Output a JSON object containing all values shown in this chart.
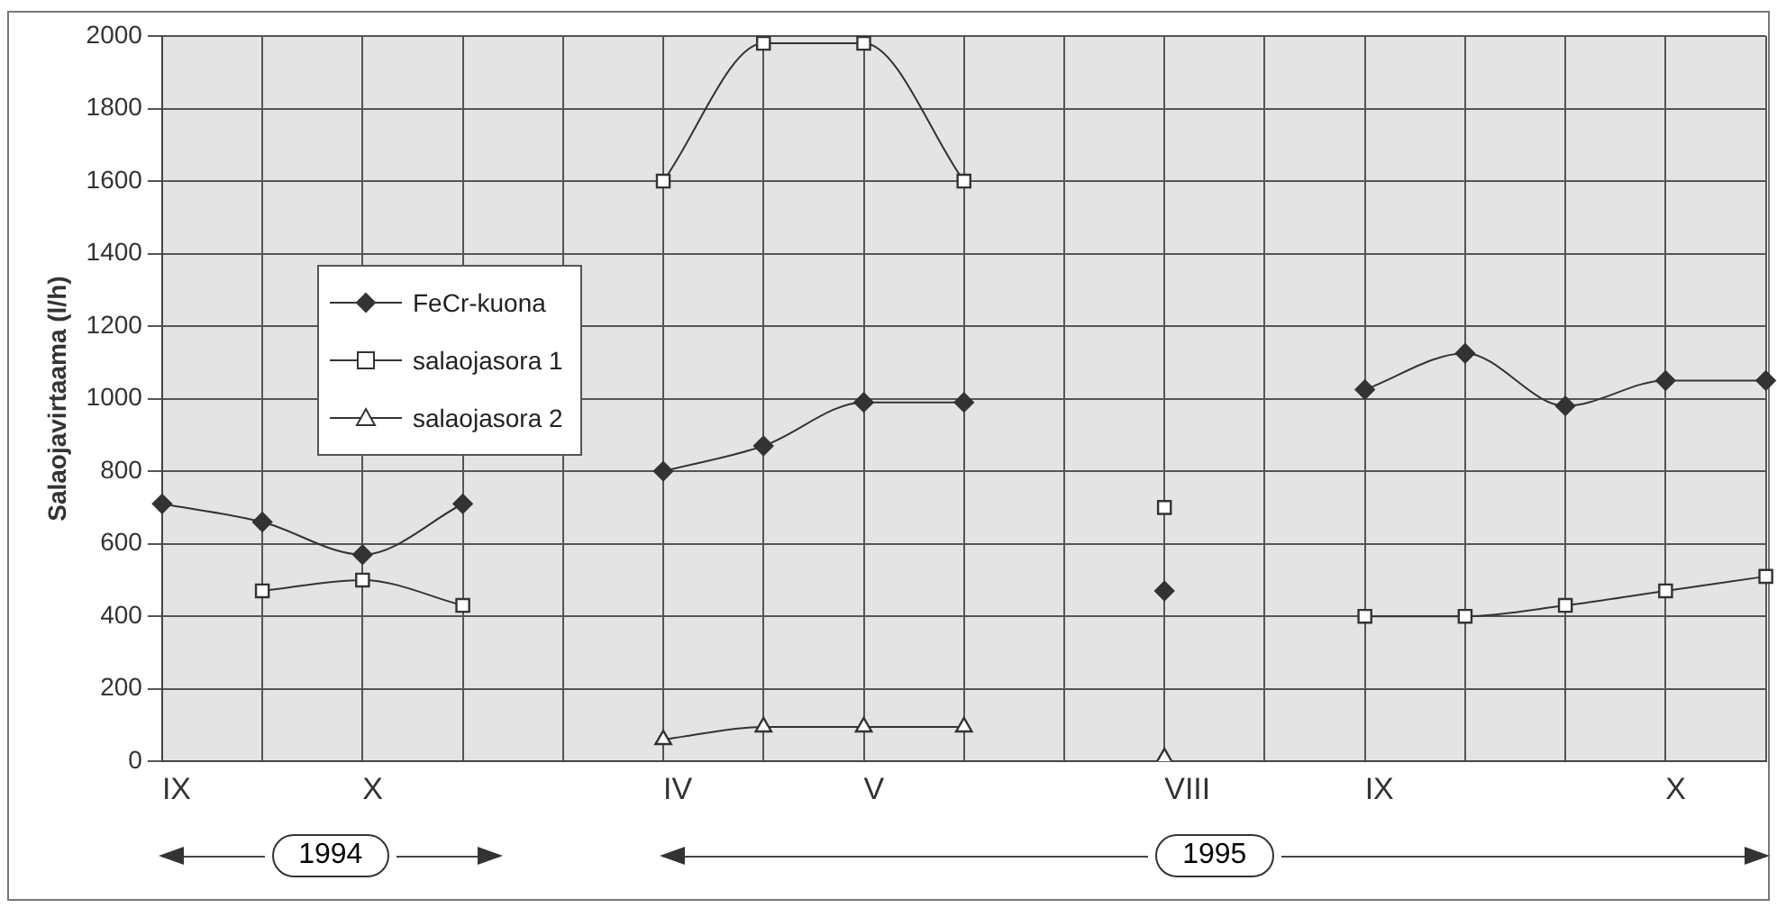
{
  "chart_data": {
    "type": "line",
    "ylabel": "Salaojavirtaama (l/h)",
    "categories": [
      "IX",
      null,
      "X",
      null,
      null,
      "IV",
      null,
      "V",
      null,
      null,
      "VIII",
      null,
      "IX",
      null,
      null,
      "X",
      null
    ],
    "series": [
      {
        "name": "FeCr-kuona",
        "color": "#333333",
        "marker": "diamond",
        "values": [
          710,
          660,
          570,
          710,
          null,
          800,
          870,
          990,
          990,
          null,
          470,
          null,
          1025,
          1125,
          980,
          1050,
          1050
        ]
      },
      {
        "name": "salaojasora 1",
        "color": "#333333",
        "marker": "square",
        "values": [
          null,
          470,
          500,
          430,
          null,
          1600,
          1980,
          1980,
          1600,
          null,
          700,
          null,
          400,
          400,
          430,
          470,
          510
        ]
      },
      {
        "name": "salaojasora 2",
        "color": "#333333",
        "marker": "triangle",
        "values": [
          null,
          null,
          null,
          null,
          null,
          60,
          95,
          95,
          95,
          null,
          10,
          null,
          null,
          null,
          null,
          null,
          null
        ]
      }
    ],
    "ylim": [
      0,
      2000
    ],
    "yticks": [
      0,
      200,
      400,
      600,
      800,
      1000,
      1200,
      1400,
      1600,
      1800,
      2000
    ],
    "grid": true,
    "legend": "left",
    "line_style": "solid",
    "annotations": [
      "1994",
      "1995"
    ]
  }
}
